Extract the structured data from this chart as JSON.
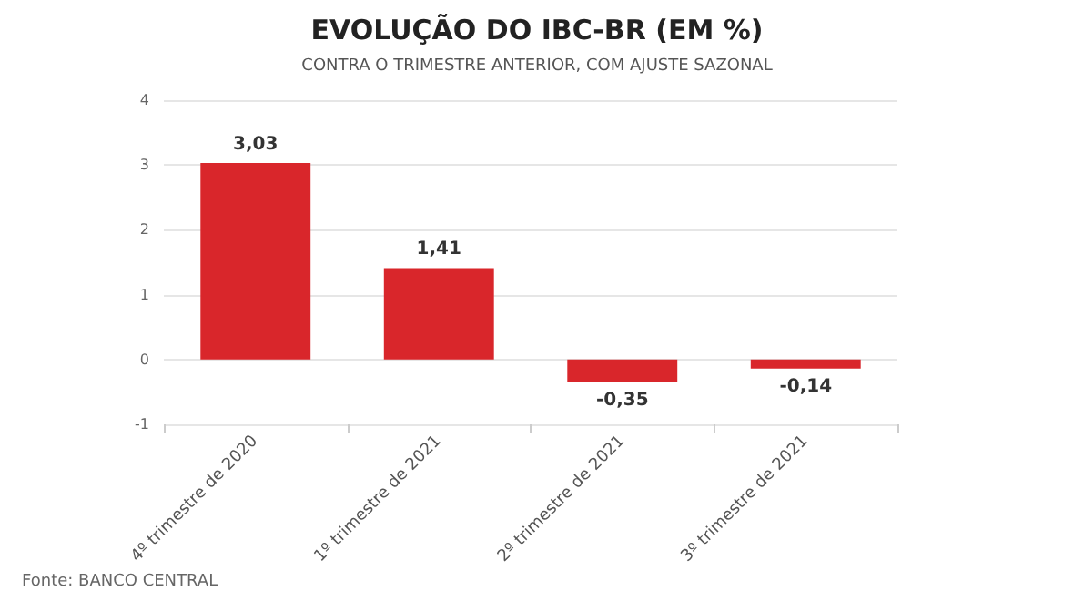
{
  "chart_data": {
    "type": "bar",
    "title": "EVOLUÇÃO DO IBC-BR (EM %)",
    "subtitle": "CONTRA O TRIMESTRE ANTERIOR, COM AJUSTE SAZONAL",
    "categories": [
      "4º trimestre de 2020",
      "1º trimestre de 2021",
      "2º trimestre de 2021",
      "3º trimestre de 2021"
    ],
    "values": [
      3.03,
      1.41,
      -0.35,
      -0.14
    ],
    "value_labels": [
      "3,03",
      "1,41",
      "-0,35",
      "-0,14"
    ],
    "color": "#d9262b",
    "ylim": [
      -1,
      4
    ],
    "yticks": [
      -1,
      0,
      1,
      2,
      3,
      4
    ],
    "grid": "y",
    "annotations": [
      "Fonte: BANCO CENTRAL"
    ]
  }
}
